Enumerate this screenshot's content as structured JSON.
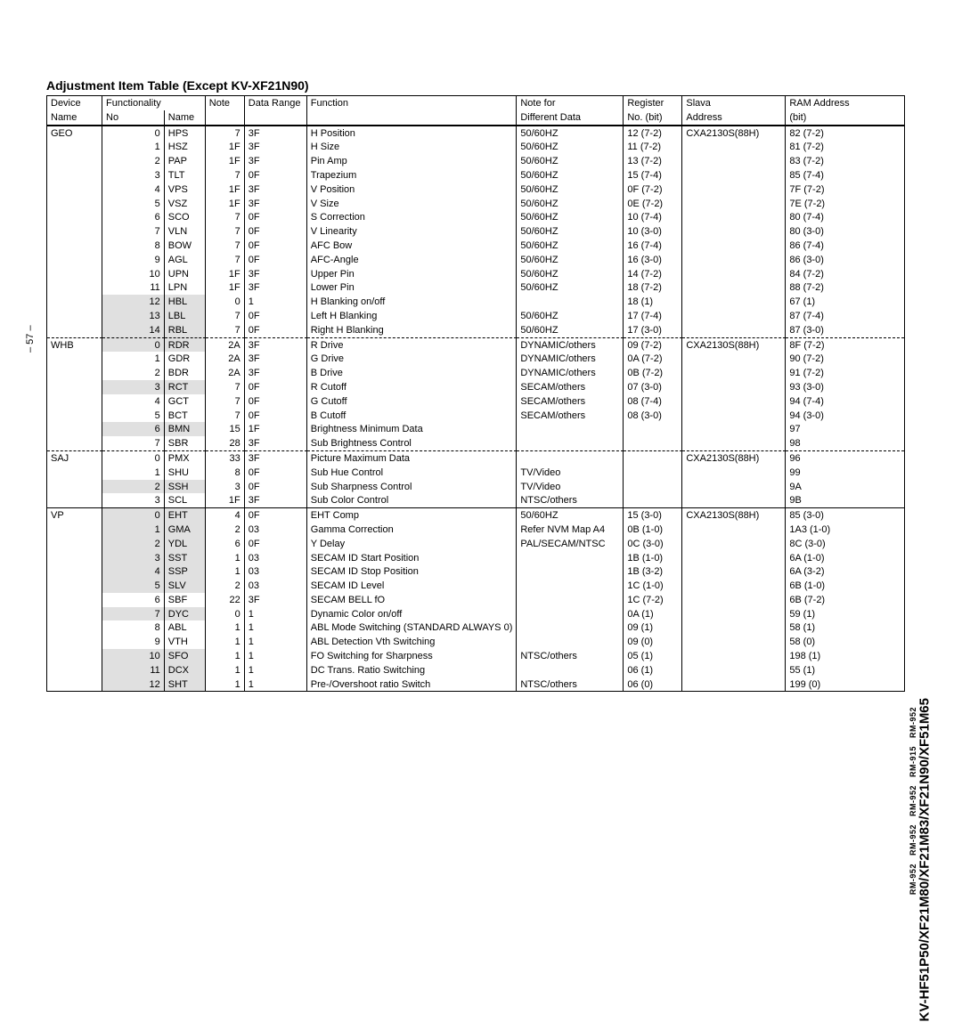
{
  "title": "Adjustment Item Table (Except KV-XF21N90)",
  "page_number": "– 57 –",
  "model_line": "KV-HF51P50/XF21M80/XF21M83/XF21N90/XF51M65",
  "rm_line": "RM-952   RM-952   RM-952   RM-915   RM-952",
  "headers1": [
    "Device",
    "Functionality",
    "",
    "Note",
    "Data Range",
    "Function",
    "Note for",
    "Register",
    "Slava",
    "RAM Address"
  ],
  "headers2": [
    "Name",
    "No",
    "Name",
    "",
    "",
    "",
    "Different Data",
    "No. (bit)",
    "Address",
    "(bit)"
  ],
  "rows": [
    {
      "dev": "GEO",
      "no": "0",
      "fn": "HPS",
      "note": "7",
      "range": "3F",
      "func": "H Position",
      "nfor": "50/60HZ",
      "reg": "12 (7-2)",
      "slava": "CXA2130S(88H)",
      "ram": "82 (7-2)",
      "top": "topborder"
    },
    {
      "dev": "",
      "no": "1",
      "fn": "HSZ",
      "note": "1F",
      "range": "3F",
      "func": "H Size",
      "nfor": "50/60HZ",
      "reg": "11 (7-2)",
      "slava": "",
      "ram": "81 (7-2)"
    },
    {
      "dev": "",
      "no": "2",
      "fn": "PAP",
      "note": "1F",
      "range": "3F",
      "func": "Pin Amp",
      "nfor": "50/60HZ",
      "reg": "13 (7-2)",
      "slava": "",
      "ram": "83 (7-2)"
    },
    {
      "dev": "",
      "no": "3",
      "fn": "TLT",
      "note": "7",
      "range": "0F",
      "func": "Trapezium",
      "nfor": "50/60HZ",
      "reg": "15 (7-4)",
      "slava": "",
      "ram": "85 (7-4)"
    },
    {
      "dev": "",
      "no": "4",
      "fn": "VPS",
      "note": "1F",
      "range": "3F",
      "func": "V Position",
      "nfor": "50/60HZ",
      "reg": "0F (7-2)",
      "slava": "",
      "ram": "7F (7-2)"
    },
    {
      "dev": "",
      "no": "5",
      "fn": "VSZ",
      "note": "1F",
      "range": "3F",
      "func": "V Size",
      "nfor": "50/60HZ",
      "reg": "0E (7-2)",
      "slava": "",
      "ram": "7E (7-2)"
    },
    {
      "dev": "",
      "no": "6",
      "fn": "SCO",
      "note": "7",
      "range": "0F",
      "func": "S Correction",
      "nfor": "50/60HZ",
      "reg": "10 (7-4)",
      "slava": "",
      "ram": "80 (7-4)"
    },
    {
      "dev": "",
      "no": "7",
      "fn": "VLN",
      "note": "7",
      "range": "0F",
      "func": "V Linearity",
      "nfor": "50/60HZ",
      "reg": "10 (3-0)",
      "slava": "",
      "ram": "80 (3-0)"
    },
    {
      "dev": "",
      "no": "8",
      "fn": "BOW",
      "note": "7",
      "range": "0F",
      "func": "AFC Bow",
      "nfor": "50/60HZ",
      "reg": "16 (7-4)",
      "slava": "",
      "ram": "86 (7-4)"
    },
    {
      "dev": "",
      "no": "9",
      "fn": "AGL",
      "note": "7",
      "range": "0F",
      "func": "AFC-Angle",
      "nfor": "50/60HZ",
      "reg": "16 (3-0)",
      "slava": "",
      "ram": "86 (3-0)"
    },
    {
      "dev": "",
      "no": "10",
      "fn": "UPN",
      "note": "1F",
      "range": "3F",
      "func": "Upper Pin",
      "nfor": "50/60HZ",
      "reg": "14 (7-2)",
      "slava": "",
      "ram": "84 (7-2)"
    },
    {
      "dev": "",
      "no": "11",
      "fn": "LPN",
      "note": "1F",
      "range": "3F",
      "func": "Lower Pin",
      "nfor": "50/60HZ",
      "reg": "18 (7-2)",
      "slava": "",
      "ram": "88 (7-2)"
    },
    {
      "dev": "",
      "no": "12",
      "fn": "HBL",
      "note": "0",
      "range": "1",
      "func": "H Blanking on/off",
      "nfor": "",
      "reg": "18 (1)",
      "slava": "",
      "ram": "67 (1)",
      "shade": true
    },
    {
      "dev": "",
      "no": "13",
      "fn": "LBL",
      "note": "7",
      "range": "0F",
      "func": "Left H Blanking",
      "nfor": "50/60HZ",
      "reg": "17 (7-4)",
      "slava": "",
      "ram": "87 (7-4)",
      "shade": true
    },
    {
      "dev": "",
      "no": "14",
      "fn": "RBL",
      "note": "7",
      "range": "0F",
      "func": "Right H Blanking",
      "nfor": "50/60HZ",
      "reg": "17 (3-0)",
      "slava": "",
      "ram": "87 (3-0)",
      "shade": true
    },
    {
      "dev": "WHB",
      "no": "0",
      "fn": "RDR",
      "note": "2A",
      "range": "3F",
      "func": "R Drive",
      "nfor": "DYNAMIC/others",
      "reg": "09 (7-2)",
      "slava": "CXA2130S(88H)",
      "ram": "8F (7-2)",
      "top": "dashtop",
      "shade": true
    },
    {
      "dev": "",
      "no": "1",
      "fn": "GDR",
      "note": "2A",
      "range": "3F",
      "func": "G Drive",
      "nfor": "DYNAMIC/others",
      "reg": "0A (7-2)",
      "slava": "",
      "ram": "90 (7-2)"
    },
    {
      "dev": "",
      "no": "2",
      "fn": "BDR",
      "note": "2A",
      "range": "3F",
      "func": "B Drive",
      "nfor": "DYNAMIC/others",
      "reg": "0B (7-2)",
      "slava": "",
      "ram": "91 (7-2)"
    },
    {
      "dev": "",
      "no": "3",
      "fn": "RCT",
      "note": "7",
      "range": "0F",
      "func": "R Cutoff",
      "nfor": "SECAM/others",
      "reg": "07 (3-0)",
      "slava": "",
      "ram": "93 (3-0)",
      "shade": true
    },
    {
      "dev": "",
      "no": "4",
      "fn": "GCT",
      "note": "7",
      "range": "0F",
      "func": "G Cutoff",
      "nfor": "SECAM/others",
      "reg": "08 (7-4)",
      "slava": "",
      "ram": "94 (7-4)"
    },
    {
      "dev": "",
      "no": "5",
      "fn": "BCT",
      "note": "7",
      "range": "0F",
      "func": "B Cutoff",
      "nfor": "SECAM/others",
      "reg": "08 (3-0)",
      "slava": "",
      "ram": "94 (3-0)"
    },
    {
      "dev": "",
      "no": "6",
      "fn": "BMN",
      "note": "15",
      "range": "1F",
      "func": "Brightness Minimum Data",
      "nfor": "",
      "reg": "",
      "slava": "",
      "ram": "97",
      "shade": true
    },
    {
      "dev": "",
      "no": "7",
      "fn": "SBR",
      "note": "28",
      "range": "3F",
      "func": "Sub Brightness Control",
      "nfor": "",
      "reg": "",
      "slava": "",
      "ram": "98"
    },
    {
      "dev": "SAJ",
      "no": "0",
      "fn": "PMX",
      "note": "33",
      "range": "3F",
      "func": "Picture Maximum Data",
      "nfor": "",
      "reg": "",
      "slava": "CXA2130S(88H)",
      "ram": "96",
      "top": "dashtop"
    },
    {
      "dev": "",
      "no": "1",
      "fn": "SHU",
      "note": "8",
      "range": "0F",
      "func": "Sub Hue Control",
      "nfor": "TV/Video",
      "reg": "",
      "slava": "",
      "ram": "99"
    },
    {
      "dev": "",
      "no": "2",
      "fn": "SSH",
      "note": "3",
      "range": "0F",
      "func": "Sub Sharpness Control",
      "nfor": "TV/Video",
      "reg": "",
      "slava": "",
      "ram": "9A",
      "shade": true
    },
    {
      "dev": "",
      "no": "3",
      "fn": "SCL",
      "note": "1F",
      "range": "3F",
      "func": "Sub Color Control",
      "nfor": "NTSC/others",
      "reg": "",
      "slava": "",
      "ram": "9B"
    },
    {
      "dev": "VP",
      "no": "0",
      "fn": "EHT",
      "note": "4",
      "range": "0F",
      "func": "EHT Comp",
      "nfor": "50/60HZ",
      "reg": "15 (3-0)",
      "slava": "CXA2130S(88H)",
      "ram": "85 (3-0)",
      "top": "topborder",
      "shade": true
    },
    {
      "dev": "",
      "no": "1",
      "fn": "GMA",
      "note": "2",
      "range": "03",
      "func": "Gamma Correction",
      "nfor": "Refer NVM Map A4",
      "reg": "0B (1-0)",
      "slava": "",
      "ram": "1A3 (1-0)",
      "shade": true
    },
    {
      "dev": "",
      "no": "2",
      "fn": "YDL",
      "note": "6",
      "range": "0F",
      "func": "Y Delay",
      "nfor": "PAL/SECAM/NTSC",
      "reg": "0C (3-0)",
      "slava": "",
      "ram": "8C (3-0)",
      "shade": true
    },
    {
      "dev": "",
      "no": "3",
      "fn": "SST",
      "note": "1",
      "range": "03",
      "func": "SECAM ID Start Position",
      "nfor": "",
      "reg": "1B (1-0)",
      "slava": "",
      "ram": "6A (1-0)",
      "shade": true
    },
    {
      "dev": "",
      "no": "4",
      "fn": "SSP",
      "note": "1",
      "range": "03",
      "func": "SECAM ID Stop Position",
      "nfor": "",
      "reg": "1B (3-2)",
      "slava": "",
      "ram": "6A (3-2)",
      "shade": true
    },
    {
      "dev": "",
      "no": "5",
      "fn": "SLV",
      "note": "2",
      "range": "03",
      "func": "SECAM ID Level",
      "nfor": "",
      "reg": "1C (1-0)",
      "slava": "",
      "ram": "6B (1-0)",
      "shade": true
    },
    {
      "dev": "",
      "no": "6",
      "fn": "SBF",
      "note": "22",
      "range": "3F",
      "func": "SECAM BELL fO",
      "nfor": "",
      "reg": "1C (7-2)",
      "slava": "",
      "ram": "6B (7-2)"
    },
    {
      "dev": "",
      "no": "7",
      "fn": "DYC",
      "note": "0",
      "range": "1",
      "func": "Dynamic Color on/off",
      "nfor": "",
      "reg": "0A (1)",
      "slava": "",
      "ram": "59 (1)",
      "shade": true
    },
    {
      "dev": "",
      "no": "8",
      "fn": "ABL",
      "note": "1",
      "range": "1",
      "func": "ABL Mode Switching (STANDARD ALWAYS 0)",
      "nfor": "",
      "reg": "09 (1)",
      "slava": "",
      "ram": "58 (1)"
    },
    {
      "dev": "",
      "no": "9",
      "fn": "VTH",
      "note": "1",
      "range": "1",
      "func": "ABL Detection Vth Switching",
      "nfor": "",
      "reg": "09 (0)",
      "slava": "",
      "ram": "58 (0)"
    },
    {
      "dev": "",
      "no": "10",
      "fn": "SFO",
      "note": "1",
      "range": "1",
      "func": "FO Switching for Sharpness",
      "nfor": "NTSC/others",
      "reg": "05 (1)",
      "slava": "",
      "ram": "198 (1)",
      "shade": true
    },
    {
      "dev": "",
      "no": "11",
      "fn": "DCX",
      "note": "1",
      "range": "1",
      "func": "DC Trans. Ratio Switching",
      "nfor": "",
      "reg": "06 (1)",
      "slava": "",
      "ram": "55 (1)",
      "shade": true
    },
    {
      "dev": "",
      "no": "12",
      "fn": "SHT",
      "note": "1",
      "range": "1",
      "func": "Pre-/Overshoot ratio Switch",
      "nfor": "NTSC/others",
      "reg": "06 (0)",
      "slava": "",
      "ram": "199 (0)",
      "shade": true
    }
  ]
}
